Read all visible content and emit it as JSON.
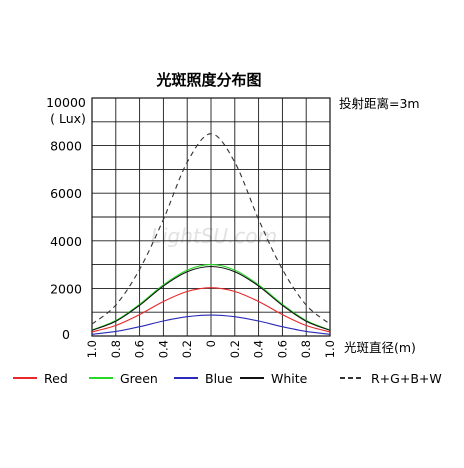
{
  "chart_data": {
    "type": "line",
    "title": "光斑照度分布图",
    "ylabel_top": "10000",
    "ylabel_unit": "( Lux)",
    "xlabel": "光斑直径(m)",
    "distance_label": "投射距离=3m",
    "watermark": "LightSU.com",
    "x_ticks": [
      "1.0",
      "0.8",
      "0.6",
      "0.4",
      "0.2",
      "0",
      "0.2",
      "0.4",
      "0.6",
      "0.8",
      "1.0"
    ],
    "x_tick_values": [
      -1.0,
      -0.8,
      -0.6,
      -0.4,
      -0.2,
      0,
      0.2,
      0.4,
      0.6,
      0.8,
      1.0
    ],
    "y_ticks": [
      "10000",
      "8000",
      "6000",
      "4000",
      "2000",
      "0"
    ],
    "y_tick_values": [
      10000,
      8000,
      6000,
      4000,
      2000,
      0
    ],
    "xlim": [
      -1.0,
      1.0
    ],
    "ylim": [
      0,
      10000
    ],
    "grid": true,
    "legend_position": "bottom",
    "series": [
      {
        "name": "Red",
        "color": "#e8282a",
        "style": "solid",
        "x": [
          -1.0,
          -0.8,
          -0.6,
          -0.4,
          -0.2,
          0,
          0.2,
          0.4,
          0.6,
          0.8,
          1.0
        ],
        "values": [
          170,
          440,
          900,
          1450,
          1870,
          2030,
          1870,
          1450,
          900,
          440,
          170
        ]
      },
      {
        "name": "Green",
        "color": "#26d926",
        "style": "solid",
        "x": [
          -1.0,
          -0.8,
          -0.6,
          -0.4,
          -0.2,
          0,
          0.2,
          0.4,
          0.6,
          0.8,
          1.0
        ],
        "values": [
          250,
          650,
          1330,
          2150,
          2770,
          3000,
          2770,
          2150,
          1330,
          650,
          250
        ]
      },
      {
        "name": "Blue",
        "color": "#2a2ab8",
        "style": "solid",
        "x": [
          -1.0,
          -0.8,
          -0.6,
          -0.4,
          -0.2,
          0,
          0.2,
          0.4,
          0.6,
          0.8,
          1.0
        ],
        "values": [
          70,
          190,
          390,
          630,
          810,
          880,
          810,
          630,
          390,
          190,
          70
        ]
      },
      {
        "name": "White",
        "color": "#111111",
        "style": "solid",
        "x": [
          -1.0,
          -0.8,
          -0.6,
          -0.4,
          -0.2,
          0,
          0.2,
          0.4,
          0.6,
          0.8,
          1.0
        ],
        "values": [
          240,
          620,
          1290,
          2100,
          2700,
          2920,
          2700,
          2100,
          1290,
          620,
          240
        ]
      },
      {
        "name": "R+G+B+W",
        "color": "#333333",
        "style": "dashed",
        "x": [
          -1.0,
          -0.8,
          -0.6,
          -0.4,
          -0.2,
          0,
          0.2,
          0.4,
          0.6,
          0.8,
          1.0
        ],
        "values": [
          500,
          1300,
          2800,
          4900,
          7300,
          8500,
          7300,
          4900,
          2800,
          1300,
          500
        ]
      }
    ]
  }
}
